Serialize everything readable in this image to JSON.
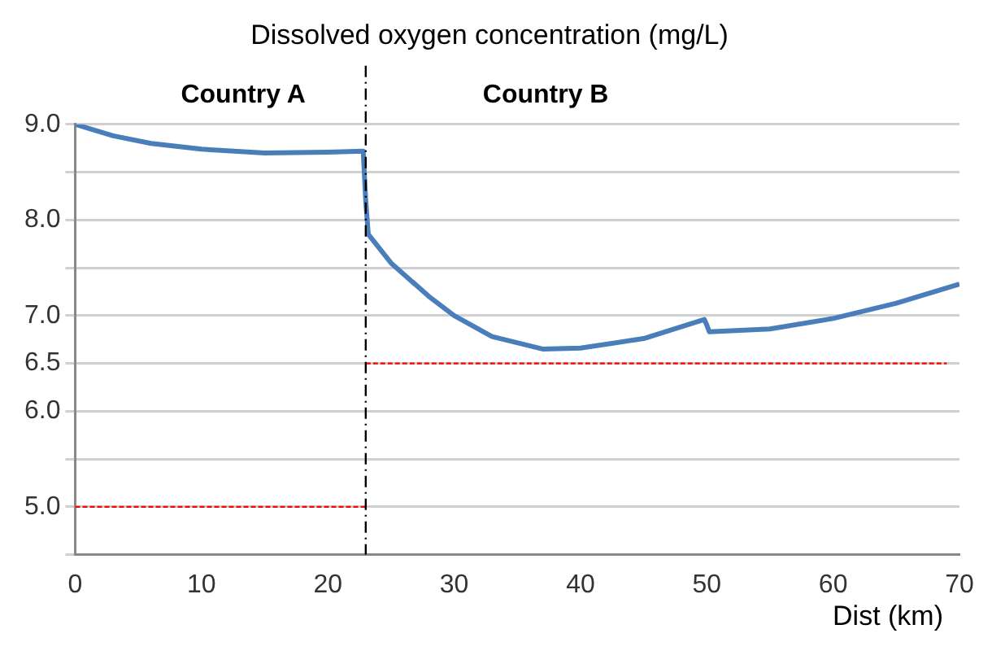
{
  "chart_data": {
    "type": "line",
    "title": "Dissolved oxygen concentration (mg/L)",
    "xlabel": "Dist (km)",
    "annotations": [
      "Country A",
      "Country B"
    ],
    "series": [
      {
        "color": "#4a7ebb",
        "x": [
          0,
          3,
          6,
          10,
          15,
          20,
          22.8,
          23,
          23.2,
          25,
          28,
          30,
          33,
          37,
          40,
          45,
          49.8,
          50,
          50.2,
          55,
          60,
          65,
          70
        ],
        "values": [
          9.0,
          8.88,
          8.8,
          8.74,
          8.7,
          8.71,
          8.72,
          8.2,
          7.85,
          7.55,
          7.2,
          7.0,
          6.78,
          6.65,
          6.66,
          6.76,
          6.96,
          6.9,
          6.83,
          6.86,
          6.97,
          7.13,
          7.33
        ]
      },
      {
        "color": "#ff0000",
        "line_style": "dashed",
        "x": [
          0,
          23
        ],
        "values": [
          5.0,
          5.0
        ]
      },
      {
        "color": "#ff0000",
        "line_style": "dashed",
        "x": [
          23,
          69
        ],
        "values": [
          6.5,
          6.5
        ]
      }
    ],
    "ref_lines": [
      {
        "axis": "x",
        "value": 23,
        "color": "#000000",
        "line_style": "dashed"
      }
    ],
    "xlim": [
      0,
      70
    ],
    "xticks": [
      0,
      10,
      20,
      30,
      40,
      50,
      60,
      70
    ],
    "ylim": [
      4.5,
      9.0
    ],
    "yticks": [
      {
        "value": 4.5,
        "label": null
      },
      {
        "value": 5.0,
        "label": "5.0"
      },
      {
        "value": 5.5,
        "label": null
      },
      {
        "value": 6.0,
        "label": "6.0"
      },
      {
        "value": 6.5,
        "label": "6.5"
      },
      {
        "value": 7.0,
        "label": "7.0"
      },
      {
        "value": 7.5,
        "label": null
      },
      {
        "value": 8.0,
        "label": "8.0"
      },
      {
        "value": 8.5,
        "label": null
      },
      {
        "value": 9.0,
        "label": "9.0"
      }
    ],
    "grid": "y",
    "legend": false,
    "marker": "none"
  }
}
